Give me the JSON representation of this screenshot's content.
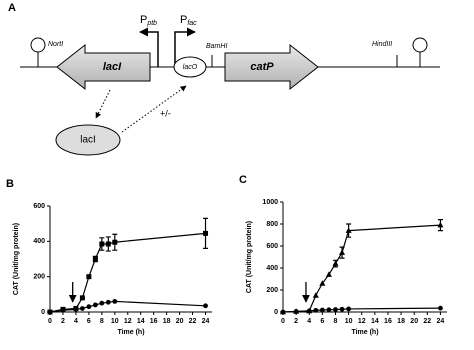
{
  "diagram": {
    "panel_label": "A",
    "terminator_left_label": "NortI",
    "gene_left": "lacI",
    "promoter_left": {
      "letter": "P",
      "subscript": "ptb"
    },
    "promoter_right": {
      "letter": "P",
      "subscript": "fac"
    },
    "operator": "lacO",
    "site_middle": "BamHI",
    "gene_right": "catP",
    "site_right": "HindIII",
    "protein": "lacI",
    "regulation": "+/-"
  },
  "chart_data": [
    {
      "type": "line",
      "panel_label": "B",
      "xlabel": "Time (h)",
      "ylabel": "CAT (Unit/mg protein)",
      "x": [
        0,
        2,
        4,
        5,
        6,
        7,
        8,
        9,
        10,
        24
      ],
      "xlim": [
        0,
        25
      ],
      "xticks": [
        0,
        2,
        4,
        6,
        8,
        10,
        12,
        14,
        16,
        18,
        20,
        22,
        24
      ],
      "ylim": [
        0,
        600
      ],
      "yticks": [
        0,
        200,
        400,
        600
      ],
      "arrow_x": 3.5,
      "series": [
        {
          "marker": "square",
          "color": "#000000",
          "values": [
            0,
            15,
            20,
            80,
            200,
            300,
            385,
            385,
            395,
            445
          ],
          "errors": [
            null,
            null,
            null,
            null,
            null,
            15,
            35,
            40,
            45,
            85
          ]
        },
        {
          "marker": "circle",
          "color": "#000000",
          "values": [
            0,
            10,
            15,
            20,
            30,
            40,
            50,
            55,
            60,
            35
          ],
          "errors": [
            null,
            null,
            null,
            null,
            null,
            null,
            null,
            null,
            null,
            null
          ]
        }
      ]
    },
    {
      "type": "line",
      "panel_label": "C",
      "xlabel": "Time (h)",
      "ylabel": "CAT (Unit/mg protein)",
      "x": [
        0,
        2,
        4,
        5,
        6,
        7,
        8,
        9,
        10,
        24
      ],
      "xlim": [
        0,
        25
      ],
      "xticks": [
        0,
        2,
        4,
        6,
        8,
        10,
        12,
        14,
        16,
        18,
        20,
        22,
        24
      ],
      "ylim": [
        0,
        1000
      ],
      "yticks": [
        0,
        200,
        400,
        600,
        800,
        1000
      ],
      "arrow_x": 3.5,
      "series": [
        {
          "marker": "triangle",
          "color": "#000000",
          "values": [
            0,
            5,
            10,
            150,
            260,
            340,
            440,
            540,
            740,
            790
          ],
          "errors": [
            null,
            null,
            null,
            null,
            null,
            null,
            30,
            50,
            60,
            50
          ]
        },
        {
          "marker": "circle",
          "color": "#000000",
          "values": [
            0,
            5,
            10,
            15,
            18,
            20,
            22,
            25,
            28,
            35
          ],
          "errors": [
            null,
            null,
            null,
            null,
            null,
            null,
            null,
            null,
            null,
            null
          ]
        }
      ]
    }
  ]
}
